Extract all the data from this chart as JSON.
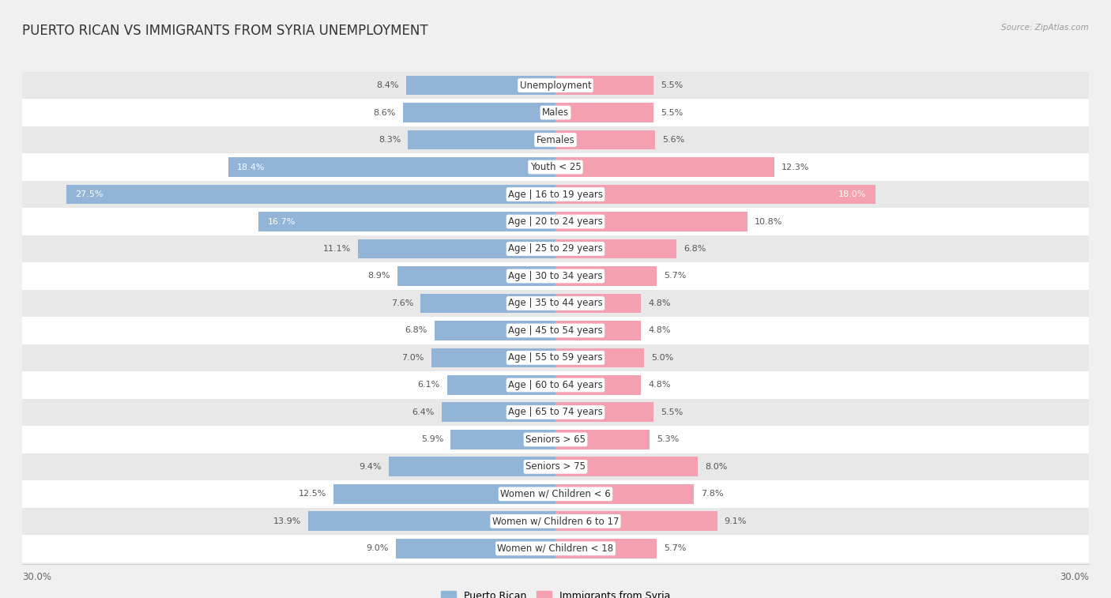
{
  "title": "PUERTO RICAN VS IMMIGRANTS FROM SYRIA UNEMPLOYMENT",
  "source": "Source: ZipAtlas.com",
  "categories": [
    "Unemployment",
    "Males",
    "Females",
    "Youth < 25",
    "Age | 16 to 19 years",
    "Age | 20 to 24 years",
    "Age | 25 to 29 years",
    "Age | 30 to 34 years",
    "Age | 35 to 44 years",
    "Age | 45 to 54 years",
    "Age | 55 to 59 years",
    "Age | 60 to 64 years",
    "Age | 65 to 74 years",
    "Seniors > 65",
    "Seniors > 75",
    "Women w/ Children < 6",
    "Women w/ Children 6 to 17",
    "Women w/ Children < 18"
  ],
  "puerto_rican": [
    8.4,
    8.6,
    8.3,
    18.4,
    27.5,
    16.7,
    11.1,
    8.9,
    7.6,
    6.8,
    7.0,
    6.1,
    6.4,
    5.9,
    9.4,
    12.5,
    13.9,
    9.0
  ],
  "syria": [
    5.5,
    5.5,
    5.6,
    12.3,
    18.0,
    10.8,
    6.8,
    5.7,
    4.8,
    4.8,
    5.0,
    4.8,
    5.5,
    5.3,
    8.0,
    7.8,
    9.1,
    5.7
  ],
  "puerto_rican_color": "#92b4d7",
  "syria_color": "#f4a0b0",
  "row_color_odd": "#ffffff",
  "row_color_even": "#e8e8e8",
  "background_color": "#f0f0f0",
  "max_value": 30.0,
  "legend_label_pr": "Puerto Rican",
  "legend_label_syria": "Immigrants from Syria",
  "title_fontsize": 12,
  "label_fontsize": 8.5,
  "value_fontsize": 8.0,
  "axis_tick_fontsize": 8.5,
  "inside_label_threshold": 14.0
}
